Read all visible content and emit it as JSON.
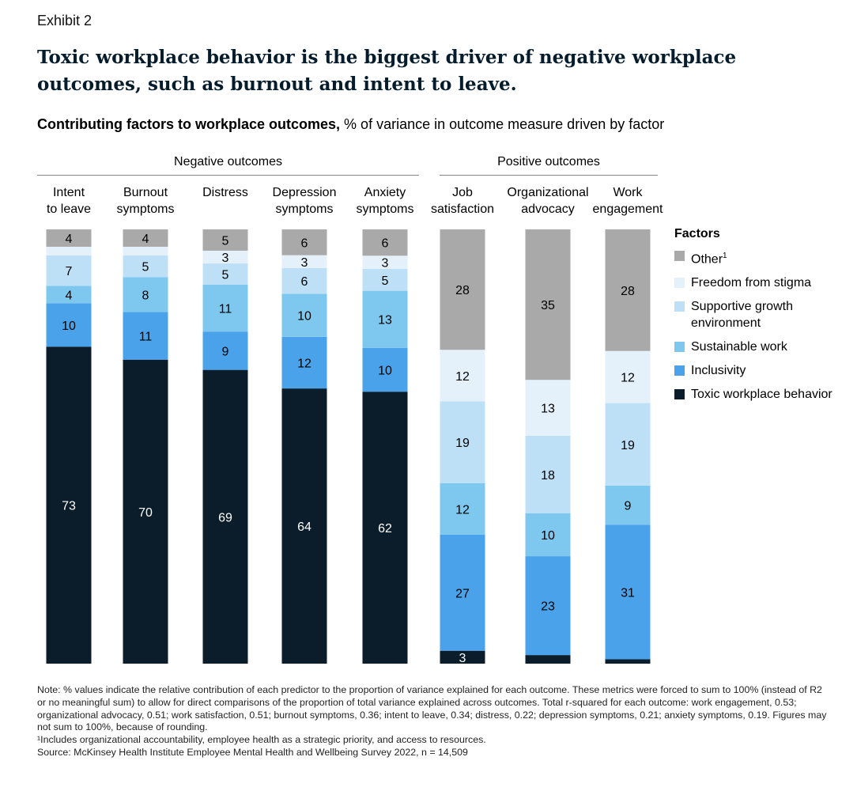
{
  "header": {
    "exhibit": "Exhibit 2",
    "title": "Toxic workplace behavior is the biggest driver of negative workplace outcomes, such as burnout and intent to leave.",
    "subtitle_bold": "Contributing factors to workplace outcomes,",
    "subtitle_rest": " % of variance in outcome measure driven by factor"
  },
  "groups": {
    "negative": "Negative outcomes",
    "positive": "Positive outcomes"
  },
  "legend": {
    "title": "Factors",
    "items": [
      {
        "label": "Other",
        "sup": "1",
        "color": "#a9a9a9"
      },
      {
        "label": "Freedom from stigma",
        "sup": "",
        "color": "#e4f1fb"
      },
      {
        "label": "Supportive growth environment",
        "sup": "",
        "color": "#bde0f6"
      },
      {
        "label": "Sustainable work",
        "sup": "",
        "color": "#7ec8ef"
      },
      {
        "label": "Inclusivity",
        "sup": "",
        "color": "#4aa3ea"
      },
      {
        "label": "Toxic workplace behavior",
        "sup": "",
        "color": "#0b1d2b"
      }
    ]
  },
  "chart_data": {
    "type": "bar",
    "stacked": true,
    "normalized": true,
    "categories": [
      "Intent to leave",
      "Burnout symptoms",
      "Distress",
      "Depression symptoms",
      "Anxiety symptoms",
      "Job satisfaction",
      "Organizational advocacy",
      "Work engagement"
    ],
    "category_labels": [
      "Intent\nto leave",
      "Burnout\nsymptoms",
      "Distress",
      "Depression\nsymptoms",
      "Anxiety\nsymptoms",
      "Job\nsatisfaction",
      "Organizational\nadvocacy",
      "Work\nengagement"
    ],
    "series": [
      {
        "name": "Toxic workplace behavior",
        "values": [
          73,
          70,
          69,
          64,
          62,
          3,
          2,
          1
        ]
      },
      {
        "name": "Inclusivity",
        "values": [
          10,
          11,
          9,
          12,
          10,
          27,
          23,
          31
        ]
      },
      {
        "name": "Sustainable work",
        "values": [
          4,
          8,
          11,
          10,
          13,
          12,
          10,
          9
        ]
      },
      {
        "name": "Supportive growth environment",
        "values": [
          7,
          5,
          5,
          6,
          5,
          19,
          18,
          19
        ]
      },
      {
        "name": "Freedom from stigma",
        "values": [
          2,
          2,
          3,
          3,
          3,
          12,
          13,
          12
        ]
      },
      {
        "name": "Other",
        "values": [
          4,
          4,
          5,
          6,
          6,
          28,
          35,
          28
        ]
      }
    ],
    "groups": [
      {
        "name": "Negative outcomes",
        "categories": [
          0,
          1,
          2,
          3,
          4
        ]
      },
      {
        "name": "Positive outcomes",
        "categories": [
          5,
          6,
          7
        ]
      }
    ],
    "legend_position": "right"
  },
  "notes": {
    "note": "Note: % values indicate the relative contribution of each predictor to the proportion of variance explained for each outcome. These metrics were forced to sum to 100% (instead of R2 or no meaningful sum) to allow for direct comparisons of the proportion of total variance explained across outcomes. Total r-squared for each outcome: work engagement, 0.53; organizational advocacy, 0.51; work satisfaction, 0.51; burnout symptoms, 0.36; intent to leave, 0.34; distress, 0.22; depression symptoms, 0.21; anxiety symptoms, 0.19. Figures may not sum to 100%, because of rounding.",
    "footnote": "¹Includes organizational accountability, employee health as a strategic priority, and access to resources.",
    "source": "Source: McKinsey Health Institute Employee Mental Health and Wellbeing Survey 2022, n = 14,509"
  }
}
